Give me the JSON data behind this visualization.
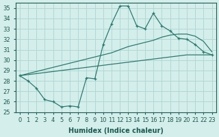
{
  "xlabel": "Humidex (Indice chaleur)",
  "background_color": "#d4eeeb",
  "grid_color": "#b0d8d4",
  "line_color": "#2a7a6e",
  "x": [
    0,
    1,
    2,
    3,
    4,
    5,
    6,
    7,
    8,
    9,
    10,
    11,
    12,
    13,
    14,
    15,
    16,
    17,
    18,
    19,
    20,
    21,
    22,
    23
  ],
  "jagged": [
    28.5,
    28.0,
    27.3,
    26.2,
    26.0,
    25.5,
    25.6,
    25.5,
    28.3,
    28.2,
    31.5,
    33.5,
    35.2,
    35.2,
    33.3,
    33.0,
    34.5,
    33.3,
    32.8,
    32.1,
    32.0,
    31.5,
    30.8,
    30.5
  ],
  "upper_line": [
    28.5,
    28.7,
    28.9,
    29.1,
    29.3,
    29.5,
    29.7,
    29.9,
    30.1,
    30.3,
    30.5,
    30.7,
    31.0,
    31.3,
    31.5,
    31.7,
    31.9,
    32.2,
    32.4,
    32.5,
    32.5,
    32.3,
    31.8,
    30.8
  ],
  "lower_line": [
    28.5,
    28.6,
    28.7,
    28.8,
    28.9,
    29.0,
    29.1,
    29.2,
    29.3,
    29.4,
    29.5,
    29.6,
    29.7,
    29.8,
    29.9,
    30.0,
    30.1,
    30.2,
    30.3,
    30.4,
    30.5,
    30.5,
    30.5,
    30.5
  ],
  "ylim": [
    25,
    35.5
  ],
  "yticks": [
    25,
    26,
    27,
    28,
    29,
    30,
    31,
    32,
    33,
    34,
    35
  ],
  "xlim": [
    -0.5,
    23.5
  ],
  "xticks": [
    0,
    1,
    2,
    3,
    4,
    5,
    6,
    7,
    8,
    9,
    10,
    11,
    12,
    13,
    14,
    15,
    16,
    17,
    18,
    19,
    20,
    21,
    22,
    23
  ],
  "tick_fontsize": 6,
  "label_fontsize": 7
}
